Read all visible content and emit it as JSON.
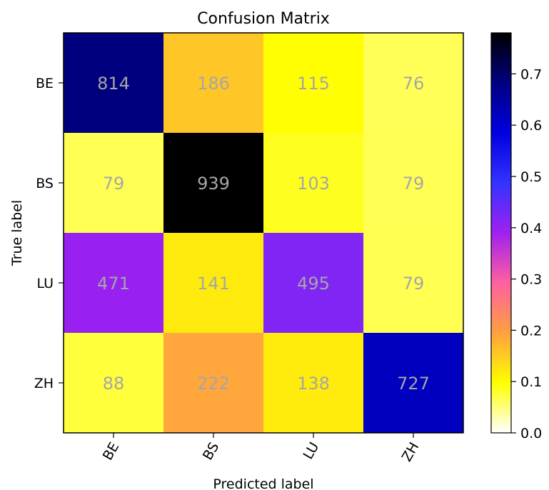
{
  "chart_data": {
    "type": "heatmap",
    "title": "Confusion Matrix",
    "xlabel": "Predicted label",
    "ylabel": "True label",
    "x_categories": [
      "BE",
      "BS",
      "LU",
      "ZH"
    ],
    "y_categories": [
      "BE",
      "BS",
      "LU",
      "ZH"
    ],
    "values": [
      [
        814,
        186,
        115,
        76
      ],
      [
        79,
        939,
        103,
        79
      ],
      [
        471,
        141,
        495,
        79
      ],
      [
        88,
        222,
        138,
        727
      ]
    ],
    "colormap": "gnuplot2_r",
    "colorbar": {
      "range": [
        0,
        0.78
      ],
      "ticks": [
        0.0,
        0.1,
        0.2,
        0.3,
        0.4,
        0.5,
        0.6,
        0.7
      ],
      "tick_labels": [
        "0.0",
        "0.1",
        "0.2",
        "0.3",
        "0.4",
        "0.5",
        "0.6",
        "0.7"
      ]
    },
    "cell_text_color": "#a6a6a6"
  }
}
